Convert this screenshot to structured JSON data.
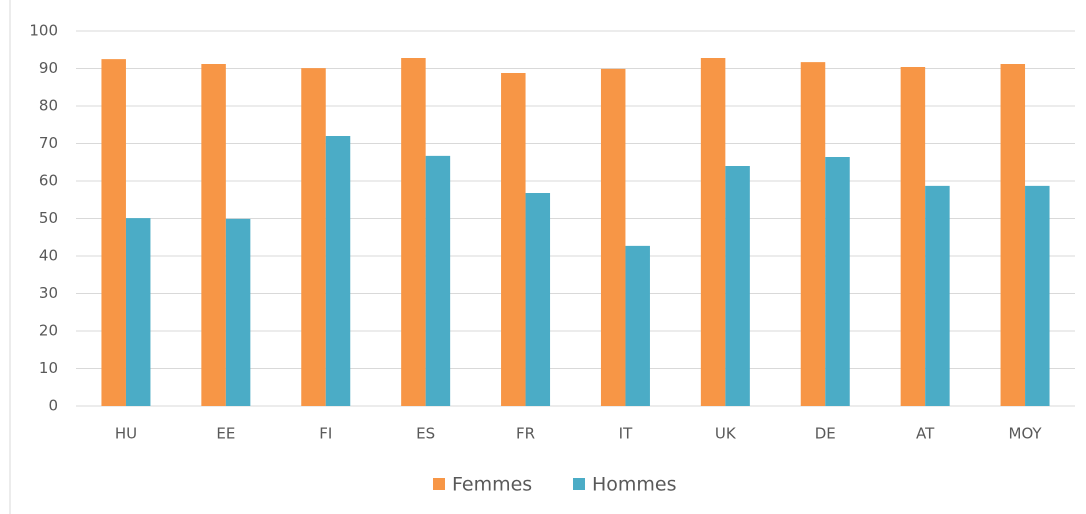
{
  "chart_data": {
    "type": "bar",
    "categories": [
      "HU",
      "EE",
      "FI",
      "ES",
      "FR",
      "IT",
      "UK",
      "DE",
      "AT",
      "MOY"
    ],
    "series": [
      {
        "name": "Femmes",
        "color": "#f79646",
        "values": [
          92.5,
          91.2,
          90.1,
          92.8,
          88.8,
          89.9,
          92.8,
          91.7,
          90.4,
          91.2
        ]
      },
      {
        "name": "Hommes",
        "color": "#4bacc6",
        "values": [
          50.1,
          49.9,
          72,
          66.7,
          56.8,
          42.7,
          64,
          66.4,
          58.7,
          58.7
        ]
      }
    ],
    "ylim": [
      0,
      100
    ],
    "yticks": [
      0,
      10,
      20,
      30,
      40,
      50,
      60,
      70,
      80,
      90,
      100
    ],
    "grid": true,
    "legend": "bottom"
  }
}
